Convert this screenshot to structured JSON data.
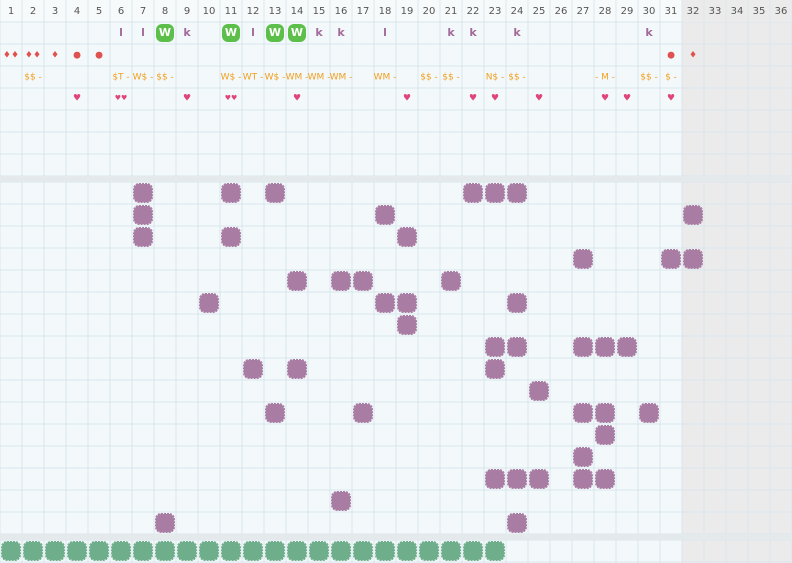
{
  "header": {
    "columns": [
      "1",
      "2",
      "3",
      "4",
      "5",
      "6",
      "7",
      "8",
      "9",
      "10",
      "11",
      "12",
      "13",
      "14",
      "15",
      "16",
      "17",
      "18",
      "19",
      "20",
      "21",
      "22",
      "23",
      "24",
      "25",
      "26",
      "27",
      "28",
      "29",
      "30",
      "31",
      "32",
      "33",
      "34",
      "35",
      "36"
    ]
  },
  "shaded_from_column": 32,
  "top": {
    "letters": [
      {
        "col": 6,
        "text": "l"
      },
      {
        "col": 7,
        "text": "l"
      },
      {
        "col": 8,
        "text": "W",
        "badge": true
      },
      {
        "col": 9,
        "text": "k"
      },
      {
        "col": 11,
        "text": "W",
        "badge": true
      },
      {
        "col": 12,
        "text": "l"
      },
      {
        "col": 13,
        "text": "W",
        "badge": true
      },
      {
        "col": 14,
        "text": "W",
        "badge": true
      },
      {
        "col": 15,
        "text": "k"
      },
      {
        "col": 16,
        "text": "k"
      },
      {
        "col": 18,
        "text": "l"
      },
      {
        "col": 21,
        "text": "k"
      },
      {
        "col": 22,
        "text": "k"
      },
      {
        "col": 24,
        "text": "k"
      },
      {
        "col": 30,
        "text": "k"
      }
    ],
    "drops": [
      {
        "col": 1,
        "text": "♦♦"
      },
      {
        "col": 2,
        "text": "♦♦"
      },
      {
        "col": 3,
        "text": "♦"
      },
      {
        "col": 4,
        "text": "●"
      },
      {
        "col": 5,
        "text": "●"
      },
      {
        "col": 31,
        "text": "●"
      },
      {
        "col": 32,
        "text": "♦"
      }
    ],
    "tags": [
      {
        "col": 2,
        "text": "$$ -"
      },
      {
        "col": 6,
        "text": "$T -"
      },
      {
        "col": 7,
        "text": "W$ -"
      },
      {
        "col": 8,
        "text": "$$ -"
      },
      {
        "col": 11,
        "text": "W$ -"
      },
      {
        "col": 12,
        "text": "WT -"
      },
      {
        "col": 13,
        "text": "W$ -"
      },
      {
        "col": 14,
        "text": "WM -"
      },
      {
        "col": 15,
        "text": "WM -"
      },
      {
        "col": 16,
        "text": "WM -"
      },
      {
        "col": 18,
        "text": "WM -"
      },
      {
        "col": 20,
        "text": "$$ -"
      },
      {
        "col": 21,
        "text": "$$ -"
      },
      {
        "col": 23,
        "text": "N$ -"
      },
      {
        "col": 24,
        "text": "$$ -"
      },
      {
        "col": 28,
        "text": "- M -"
      },
      {
        "col": 30,
        "text": "$$ -"
      },
      {
        "col": 31,
        "text": "$ -"
      }
    ],
    "hearts": [
      {
        "col": 4,
        "text": "♥"
      },
      {
        "col": 6,
        "text": "♥♥"
      },
      {
        "col": 9,
        "text": "♥"
      },
      {
        "col": 11,
        "text": "♥♥"
      },
      {
        "col": 14,
        "text": "♥"
      },
      {
        "col": 19,
        "text": "♥"
      },
      {
        "col": 22,
        "text": "♥"
      },
      {
        "col": 23,
        "text": "♥"
      },
      {
        "col": 25,
        "text": "♥"
      },
      {
        "col": 28,
        "text": "♥"
      },
      {
        "col": 29,
        "text": "♥"
      },
      {
        "col": 31,
        "text": "♥"
      }
    ]
  },
  "blob_rows": [
    [
      7,
      11,
      13,
      22,
      23,
      24
    ],
    [
      7,
      18,
      32
    ],
    [
      7,
      11,
      19
    ],
    [
      27,
      31,
      32
    ],
    [
      14,
      16,
      17,
      21
    ],
    [
      10,
      18,
      19,
      24
    ],
    [
      19
    ],
    [
      23,
      24,
      27,
      28,
      29
    ],
    [
      12,
      14,
      23
    ],
    [
      25
    ],
    [
      13,
      17,
      27,
      28,
      30
    ],
    [
      28
    ],
    [
      27
    ],
    [
      23,
      24,
      25,
      27,
      28
    ],
    [
      16
    ],
    [
      8,
      24
    ]
  ],
  "bottom_row": [
    1,
    2,
    3,
    4,
    5,
    6,
    7,
    8,
    9,
    10,
    11,
    12,
    13,
    14,
    15,
    16,
    17,
    18,
    19,
    20,
    21,
    22,
    23
  ]
}
